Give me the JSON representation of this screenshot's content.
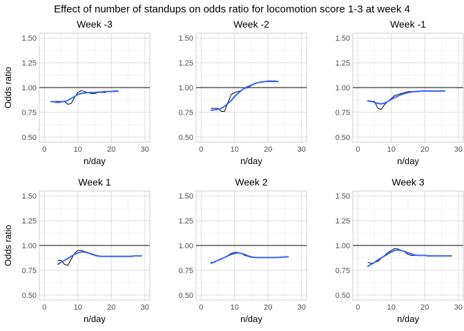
{
  "figure": {
    "title": "Effect of number of standups on odds ratio for locomotion score 1-3 at week 4"
  },
  "chart_data": [
    {
      "type": "line",
      "title": "Week -3",
      "xlabel": "n/day",
      "ylabel": "Odds ratio",
      "xlim": [
        0,
        30
      ],
      "ylim": [
        0.5,
        1.5
      ],
      "xticks": [
        "0",
        "10",
        "20",
        "30"
      ],
      "yticks": [
        "0.50",
        "0.75",
        "1.00",
        "1.25",
        "1.50"
      ],
      "reference_line": 1.0,
      "grid": true,
      "series": [
        {
          "color": "#000000",
          "x": [
            2,
            3,
            4,
            5,
            6,
            7,
            8,
            9,
            10,
            11,
            12,
            13,
            14,
            15,
            16,
            17,
            18,
            19,
            20,
            21,
            22
          ],
          "y": [
            0.86,
            0.86,
            0.86,
            0.86,
            0.86,
            0.83,
            0.84,
            0.9,
            0.95,
            0.97,
            0.96,
            0.95,
            0.94,
            0.94,
            0.95,
            0.95,
            0.95,
            0.96,
            0.96,
            0.96,
            0.96
          ]
        },
        {
          "color": "#3366ff",
          "x": [
            2,
            3,
            4,
            5,
            6,
            7,
            8,
            9,
            10,
            11,
            12,
            13,
            14,
            15,
            16,
            17,
            18,
            19,
            20,
            21,
            22
          ],
          "y": [
            0.86,
            0.855,
            0.85,
            0.855,
            0.86,
            0.87,
            0.89,
            0.91,
            0.93,
            0.94,
            0.945,
            0.95,
            0.95,
            0.95,
            0.955,
            0.955,
            0.96,
            0.96,
            0.96,
            0.965,
            0.965
          ]
        }
      ]
    },
    {
      "type": "line",
      "title": "Week -2",
      "xlabel": "n/day",
      "ylabel": "",
      "xlim": [
        0,
        30
      ],
      "ylim": [
        0.5,
        1.5
      ],
      "xticks": [
        "0",
        "10",
        "20",
        "30"
      ],
      "yticks": [
        "0.50",
        "0.75",
        "1.00",
        "1.25",
        "1.50"
      ],
      "reference_line": 1.0,
      "grid": true,
      "series": [
        {
          "color": "#000000",
          "x": [
            3,
            4,
            5,
            6,
            7,
            8,
            9,
            10,
            11,
            12,
            13,
            14,
            15,
            16,
            17,
            18,
            19,
            20,
            21,
            22,
            23
          ],
          "y": [
            0.79,
            0.79,
            0.79,
            0.76,
            0.76,
            0.85,
            0.93,
            0.95,
            0.96,
            0.97,
            0.99,
            1.0,
            1.02,
            1.04,
            1.05,
            1.06,
            1.06,
            1.06,
            1.06,
            1.06,
            1.06
          ]
        },
        {
          "color": "#3366ff",
          "x": [
            3,
            4,
            5,
            6,
            7,
            8,
            9,
            10,
            11,
            12,
            13,
            14,
            15,
            16,
            17,
            18,
            19,
            20,
            21,
            22,
            23
          ],
          "y": [
            0.77,
            0.775,
            0.78,
            0.79,
            0.81,
            0.84,
            0.87,
            0.91,
            0.94,
            0.97,
            0.995,
            1.01,
            1.025,
            1.04,
            1.05,
            1.055,
            1.06,
            1.065,
            1.065,
            1.065,
            1.06
          ]
        }
      ]
    },
    {
      "type": "line",
      "title": "Week -1",
      "xlabel": "n/day",
      "ylabel": "",
      "xlim": [
        0,
        30
      ],
      "ylim": [
        0.5,
        1.5
      ],
      "xticks": [
        "0",
        "10",
        "20",
        "30"
      ],
      "yticks": [
        "0.50",
        "0.75",
        "1.00",
        "1.25",
        "1.50"
      ],
      "reference_line": 1.0,
      "grid": true,
      "series": [
        {
          "color": "#000000",
          "x": [
            3,
            4,
            5,
            6,
            7,
            8,
            9,
            10,
            11,
            12,
            13,
            14,
            15,
            16,
            17,
            18,
            19,
            20,
            21,
            22,
            23,
            24,
            25,
            26
          ],
          "y": [
            0.86,
            0.86,
            0.86,
            0.79,
            0.78,
            0.83,
            0.86,
            0.89,
            0.92,
            0.93,
            0.94,
            0.95,
            0.96,
            0.96,
            0.96,
            0.965,
            0.965,
            0.965,
            0.965,
            0.965,
            0.965,
            0.965,
            0.965,
            0.965
          ]
        },
        {
          "color": "#3366ff",
          "x": [
            3,
            4,
            5,
            6,
            7,
            8,
            9,
            10,
            11,
            12,
            13,
            14,
            15,
            16,
            17,
            18,
            19,
            20,
            21,
            22,
            23,
            24,
            25,
            26
          ],
          "y": [
            0.865,
            0.86,
            0.85,
            0.84,
            0.835,
            0.845,
            0.86,
            0.88,
            0.9,
            0.915,
            0.93,
            0.94,
            0.95,
            0.955,
            0.96,
            0.96,
            0.965,
            0.965,
            0.965,
            0.965,
            0.965,
            0.965,
            0.965,
            0.965
          ]
        }
      ]
    },
    {
      "type": "line",
      "title": "Week 1",
      "xlabel": "n/day",
      "ylabel": "Odds ratio",
      "xlim": [
        0,
        30
      ],
      "ylim": [
        0.5,
        1.5
      ],
      "xticks": [
        "0",
        "10",
        "20",
        "30"
      ],
      "yticks": [
        "0.50",
        "0.75",
        "1.00",
        "1.25",
        "1.50"
      ],
      "reference_line": 1.0,
      "grid": true,
      "series": [
        {
          "color": "#000000",
          "x": [
            4,
            5,
            6,
            7,
            8,
            9,
            10,
            11,
            12,
            13,
            14,
            15,
            16,
            17,
            18,
            19,
            20,
            21,
            22,
            23,
            24,
            25,
            26,
            27,
            28,
            29
          ],
          "y": [
            0.85,
            0.85,
            0.81,
            0.8,
            0.86,
            0.92,
            0.95,
            0.95,
            0.94,
            0.93,
            0.91,
            0.9,
            0.89,
            0.89,
            0.89,
            0.89,
            0.89,
            0.89,
            0.89,
            0.89,
            0.89,
            0.89,
            0.895,
            0.895,
            0.895,
            0.895
          ]
        },
        {
          "color": "#3366ff",
          "x": [
            4,
            5,
            6,
            7,
            8,
            9,
            10,
            11,
            12,
            13,
            14,
            15,
            16,
            17,
            18,
            19,
            20,
            21,
            22,
            23,
            24,
            25,
            26,
            27,
            28,
            29
          ],
          "y": [
            0.81,
            0.83,
            0.85,
            0.87,
            0.89,
            0.91,
            0.925,
            0.935,
            0.935,
            0.925,
            0.915,
            0.905,
            0.895,
            0.89,
            0.89,
            0.89,
            0.89,
            0.89,
            0.89,
            0.89,
            0.89,
            0.89,
            0.89,
            0.895,
            0.895,
            0.895
          ]
        }
      ]
    },
    {
      "type": "line",
      "title": "Week 2",
      "xlabel": "n/day",
      "ylabel": "",
      "xlim": [
        0,
        30
      ],
      "ylim": [
        0.5,
        1.5
      ],
      "xticks": [
        "0",
        "10",
        "20",
        "30"
      ],
      "yticks": [
        "0.50",
        "0.75",
        "1.00",
        "1.25",
        "1.50"
      ],
      "reference_line": 1.0,
      "grid": true,
      "series": [
        {
          "color": "#000000",
          "x": [
            3,
            4,
            5,
            6,
            7,
            8,
            9,
            10,
            11,
            12,
            13,
            14,
            15,
            16,
            17,
            18,
            19,
            20,
            21,
            22,
            23,
            24,
            25,
            26
          ],
          "y": [
            0.83,
            0.83,
            0.85,
            0.86,
            0.88,
            0.9,
            0.92,
            0.93,
            0.93,
            0.92,
            0.9,
            0.89,
            0.88,
            0.88,
            0.88,
            0.88,
            0.88,
            0.88,
            0.88,
            0.88,
            0.88,
            0.885,
            0.885,
            0.885
          ]
        },
        {
          "color": "#3366ff",
          "x": [
            3,
            4,
            5,
            6,
            7,
            8,
            9,
            10,
            11,
            12,
            13,
            14,
            15,
            16,
            17,
            18,
            19,
            20,
            21,
            22,
            23,
            24,
            25,
            26
          ],
          "y": [
            0.82,
            0.835,
            0.85,
            0.865,
            0.88,
            0.895,
            0.91,
            0.92,
            0.925,
            0.92,
            0.91,
            0.895,
            0.885,
            0.88,
            0.878,
            0.878,
            0.878,
            0.878,
            0.878,
            0.878,
            0.88,
            0.882,
            0.885,
            0.885
          ]
        }
      ]
    },
    {
      "type": "line",
      "title": "Week 3",
      "xlabel": "n/day",
      "ylabel": "",
      "xlim": [
        0,
        30
      ],
      "ylim": [
        0.5,
        1.5
      ],
      "xticks": [
        "0",
        "10",
        "20",
        "30"
      ],
      "yticks": [
        "0.50",
        "0.75",
        "1.00",
        "1.25",
        "1.50"
      ],
      "reference_line": 1.0,
      "grid": true,
      "series": [
        {
          "color": "#000000",
          "x": [
            3,
            4,
            5,
            6,
            7,
            8,
            9,
            10,
            11,
            12,
            13,
            14,
            15,
            16,
            17,
            18,
            19,
            20,
            21,
            22,
            23,
            24,
            25,
            26,
            27,
            28
          ],
          "y": [
            0.83,
            0.82,
            0.83,
            0.84,
            0.87,
            0.9,
            0.93,
            0.95,
            0.97,
            0.965,
            0.95,
            0.935,
            0.91,
            0.9,
            0.9,
            0.9,
            0.9,
            0.9,
            0.895,
            0.895,
            0.895,
            0.895,
            0.895,
            0.895,
            0.895,
            0.895
          ]
        },
        {
          "color": "#3366ff",
          "x": [
            3,
            4,
            5,
            6,
            7,
            8,
            9,
            10,
            11,
            12,
            13,
            14,
            15,
            16,
            17,
            18,
            19,
            20,
            21,
            22,
            23,
            24,
            25,
            26,
            27,
            28
          ],
          "y": [
            0.79,
            0.81,
            0.83,
            0.855,
            0.875,
            0.895,
            0.915,
            0.935,
            0.95,
            0.955,
            0.95,
            0.94,
            0.925,
            0.915,
            0.905,
            0.9,
            0.9,
            0.9,
            0.895,
            0.895,
            0.895,
            0.895,
            0.895,
            0.895,
            0.895,
            0.895
          ]
        }
      ]
    }
  ]
}
